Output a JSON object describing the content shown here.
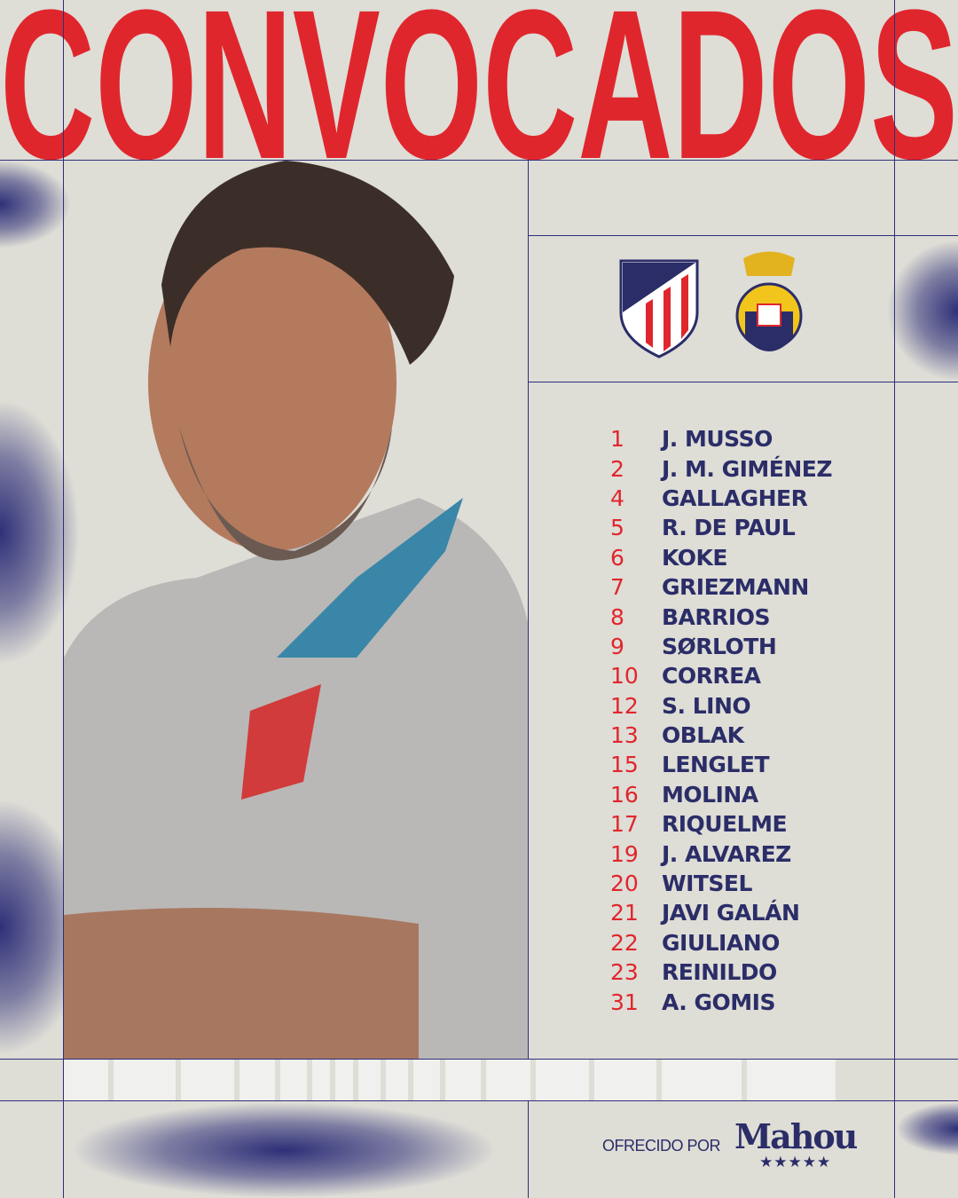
{
  "headline": "CONVOCADOS",
  "crests": {
    "home": "Atlético de Madrid",
    "away": "UD Las Palmas"
  },
  "squad": [
    {
      "number": "1",
      "name": "J. MUSSO"
    },
    {
      "number": "2",
      "name": "J. M. GIMÉNEZ"
    },
    {
      "number": "4",
      "name": "GALLAGHER"
    },
    {
      "number": "5",
      "name": "R. DE PAUL"
    },
    {
      "number": "6",
      "name": "KOKE"
    },
    {
      "number": "7",
      "name": "GRIEZMANN"
    },
    {
      "number": "8",
      "name": "BARRIOS"
    },
    {
      "number": "9",
      "name": "SØRLOTH"
    },
    {
      "number": "10",
      "name": "CORREA"
    },
    {
      "number": "12",
      "name": "S. LINO"
    },
    {
      "number": "13",
      "name": "OBLAK"
    },
    {
      "number": "15",
      "name": "LENGLET"
    },
    {
      "number": "16",
      "name": "MOLINA"
    },
    {
      "number": "17",
      "name": "RIQUELME"
    },
    {
      "number": "19",
      "name": "J. ALVAREZ"
    },
    {
      "number": "20",
      "name": "WITSEL"
    },
    {
      "number": "21",
      "name": "JAVI GALÁN"
    },
    {
      "number": "22",
      "name": "GIULIANO"
    },
    {
      "number": "23",
      "name": "REINILDO"
    },
    {
      "number": "31",
      "name": "A. GOMIS"
    }
  ],
  "sponsor": {
    "label": "OFRECIDO POR",
    "brand": "Mahou",
    "stars": "★★★★★"
  },
  "colors": {
    "red": "#e0262d",
    "navy": "#2b2d68",
    "background": "#deddd6"
  }
}
